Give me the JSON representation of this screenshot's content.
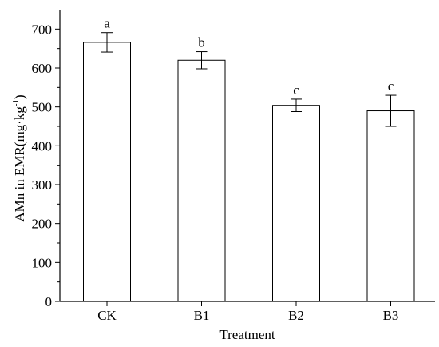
{
  "chart_data": {
    "type": "bar",
    "categories": [
      "CK",
      "B1",
      "B2",
      "B3"
    ],
    "values": [
      666,
      620,
      504,
      490
    ],
    "error": [
      25,
      22,
      16,
      40
    ],
    "significance": [
      "a",
      "b",
      "c",
      "c"
    ],
    "xlabel": "Treatment",
    "ylabel_main": "AMn in EMR(mg·kg",
    "ylabel_sup": "-1",
    "ylabel_end": ")",
    "ylim": [
      0,
      750
    ],
    "yticks": [
      0,
      100,
      200,
      300,
      400,
      500,
      600,
      700
    ],
    "minor_y_step": 50,
    "bar_fill": "#ffffff",
    "bar_stroke": "#000000",
    "grid": false,
    "legend": "none"
  }
}
